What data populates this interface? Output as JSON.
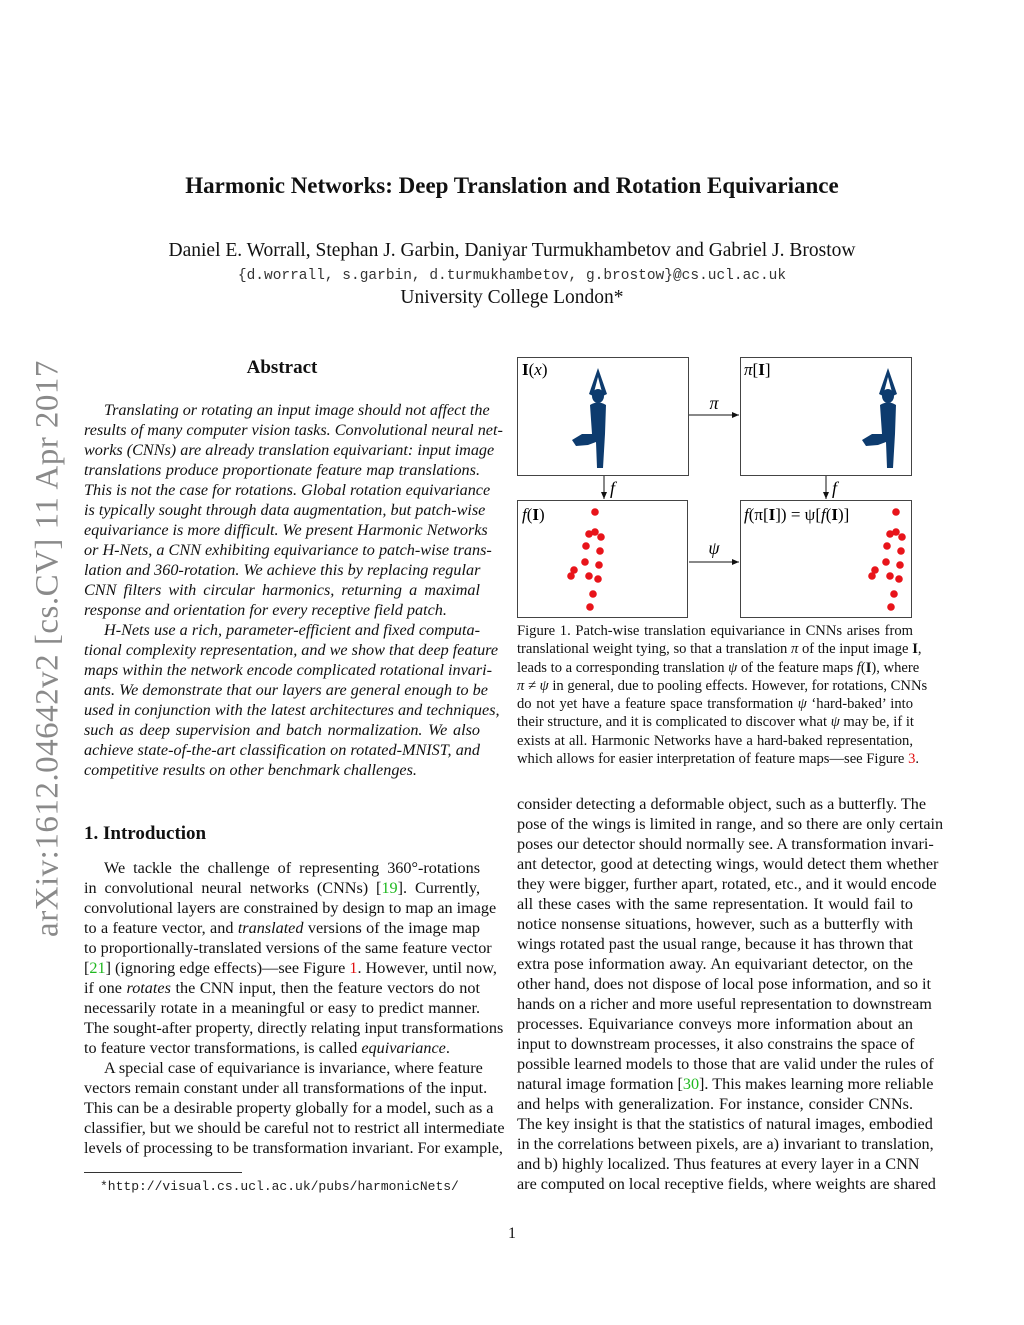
{
  "header": {
    "title": "Harmonic Networks: Deep Translation and Rotation Equivariance",
    "authors": "Daniel E. Worrall, Stephan J. Garbin, Daniyar Turmukhambetov and Gabriel J. Brostow",
    "emails": "{d.worrall, s.garbin, d.turmukhambetov, g.brostow}@cs.ucl.ac.uk",
    "affiliation": "University College London*"
  },
  "arxiv_stamp": "arXiv:1612.04642v2  [cs.CV]  11 Apr 2017",
  "abstract": {
    "heading": "Abstract",
    "paragraphs": [
      [
        "Translating or rotating an input image should not affect the",
        "results of many computer vision tasks. Convolutional neural net-",
        "works (CNNs) are already translation equivariant: input image",
        "translations produce proportionate feature map translations.",
        "This is not the case for rotations. Global rotation equivariance",
        "is typically sought through data augmentation, but patch-wise",
        "equivariance is more difficult. We present Harmonic Networks",
        "or H-Nets, a CNN exhibiting equivariance to patch-wise trans-",
        "lation and 360-rotation. We achieve this by replacing regular",
        "CNN filters with circular harmonics, returning a maximal",
        "response and orientation for every receptive field patch."
      ],
      [
        "H-Nets use a rich, parameter-efficient and fixed computa-",
        "tional complexity representation, and we show that deep feature",
        "maps within the network encode complicated rotational invari-",
        "ants. We demonstrate that our layers are general enough to be",
        "used in conjunction with the latest architectures and techniques,",
        "such as deep supervision and batch normalization.  We also",
        "achieve state-of-the-art classification on rotated-MNIST, and",
        "competitive results on other benchmark challenges."
      ]
    ]
  },
  "introduction": {
    "heading": "1. Introduction",
    "paragraphs": [
      [
        "We tackle the challenge of representing 360°-rotations",
        [
          {
            "t": "in convolutional neural networks (CNNs) ["
          },
          {
            "t": "19",
            "s": "cite"
          },
          {
            "t": "].  Currently,"
          }
        ],
        "convolutional layers are constrained by design to map an image",
        [
          {
            "t": "to a feature vector, and "
          },
          {
            "t": "translated",
            "s": "it"
          },
          {
            "t": " versions of the image map"
          }
        ],
        "to proportionally-translated versions of the same feature vector",
        [
          {
            "t": "["
          },
          {
            "t": "21",
            "s": "cite"
          },
          {
            "t": "] (ignoring edge effects)—see Figure "
          },
          {
            "t": "1",
            "s": "ref"
          },
          {
            "t": ". However, until now,"
          }
        ],
        [
          {
            "t": "if one "
          },
          {
            "t": "rotates",
            "s": "it"
          },
          {
            "t": " the CNN input, then the feature vectors do not"
          }
        ],
        "necessarily rotate in a meaningful or easy to predict manner.",
        "The sought-after property, directly relating input transformations",
        [
          {
            "t": "to feature vector transformations, is called "
          },
          {
            "t": "equivariance",
            "s": "it"
          },
          {
            "t": "."
          }
        ]
      ],
      [
        "A special case of equivariance is invariance, where feature",
        "vectors remain constant under all transformations of the input.",
        "This can be a desirable property globally for a model, such as a",
        "classifier, but we should be careful not to restrict all intermediate",
        "levels of processing to be transformation invariant. For example,"
      ]
    ],
    "continued": [
      "consider detecting a deformable object, such as a butterfly. The",
      "pose of the wings is limited in range, and so there are only certain",
      "poses our detector should normally see. A transformation invari-",
      "ant detector, good at detecting wings, would detect them whether",
      "they were bigger, further apart, rotated, etc., and it would encode",
      "all these cases with the same representation.  It would fail to",
      "notice nonsense situations, however, such as a butterfly with",
      "wings rotated past the usual range, because it has thrown that",
      "extra pose information away.  An equivariant detector, on the",
      "other hand, does not dispose of local pose information, and so it",
      "hands on a richer and more useful representation to downstream",
      "processes.  Equivariance conveys more information about an",
      "input to downstream processes, it also constrains the space of",
      "possible learned models to those that are valid under the rules of",
      [
        {
          "t": "natural image formation ["
        },
        {
          "t": "30",
          "s": "cite"
        },
        {
          "t": "]. This makes learning more reliable"
        }
      ],
      "and helps with generalization.  For instance, consider CNNs.",
      "The key insight is that the statistics of natural images, embodied",
      "in the correlations between pixels, are a) invariant to translation,",
      "and b) highly localized. Thus features at every layer in a CNN",
      "are computed on local receptive fields, where weights are shared"
    ]
  },
  "figure1": {
    "panels": {
      "input": [
        {
          "t": "I",
          "s": "b"
        },
        {
          "t": "(",
          "s": "n"
        },
        {
          "t": "x",
          "s": "m"
        },
        {
          "t": ")",
          "s": "n"
        }
      ],
      "translated": [
        {
          "t": "π",
          "s": "m"
        },
        {
          "t": "[",
          "s": "n"
        },
        {
          "t": "I",
          "s": "b"
        },
        {
          "t": "]",
          "s": "n"
        }
      ],
      "features": [
        {
          "t": "f",
          "s": "m"
        },
        {
          "t": "(",
          "s": "n"
        },
        {
          "t": "I",
          "s": "b"
        },
        {
          "t": ")",
          "s": "n"
        }
      ],
      "translated_features": [
        {
          "t": "f",
          "s": "m"
        },
        {
          "t": "(π[",
          "s": "n"
        },
        {
          "t": "I",
          "s": "b"
        },
        {
          "t": "]) = ψ[",
          "s": "n"
        },
        {
          "t": "f",
          "s": "m"
        },
        {
          "t": "(",
          "s": "n"
        },
        {
          "t": "I",
          "s": "b"
        },
        {
          "t": ")]",
          "s": "n"
        }
      ]
    },
    "arrows": {
      "pi": "π",
      "f_left": "f",
      "f_right": "f",
      "psi": "ψ"
    },
    "colors": {
      "silhouette": "#0d3b6e",
      "feature_dots": "#e8141a"
    },
    "caption": [
      "Figure 1. Patch-wise translation equivariance in CNNs arises from",
      [
        {
          "t": "translational weight tying, so that a translation "
        },
        {
          "t": "π",
          "s": "m"
        },
        {
          "t": " of the input image "
        },
        {
          "t": "I",
          "s": "b"
        },
        {
          "t": ","
        }
      ],
      [
        {
          "t": "leads to a corresponding translation "
        },
        {
          "t": "ψ",
          "s": "m"
        },
        {
          "t": " of the feature maps "
        },
        {
          "t": "f",
          "s": "m"
        },
        {
          "t": "("
        },
        {
          "t": "I",
          "s": "b"
        },
        {
          "t": "), where"
        }
      ],
      [
        {
          "t": "π ≠ ψ",
          "s": "m"
        },
        {
          "t": " in general, due to pooling effects. However, for rotations, CNNs"
        }
      ],
      [
        {
          "t": "do not yet have a feature space transformation "
        },
        {
          "t": "ψ",
          "s": "m"
        },
        {
          "t": " ‘hard-baked’ into"
        }
      ],
      [
        {
          "t": "their structure, and it is complicated to discover what "
        },
        {
          "t": "ψ",
          "s": "m"
        },
        {
          "t": " may be, if it"
        }
      ],
      "exists at all.  Harmonic Networks have a hard-baked representation,",
      [
        {
          "t": "which allows for easier interpretation of feature maps—see Figure "
        },
        {
          "t": "3",
          "s": "ref"
        },
        {
          "t": "."
        }
      ]
    ]
  },
  "footnote": "*http://visual.cs.ucl.ac.uk/pubs/harmonicNets/",
  "page_number": "1"
}
